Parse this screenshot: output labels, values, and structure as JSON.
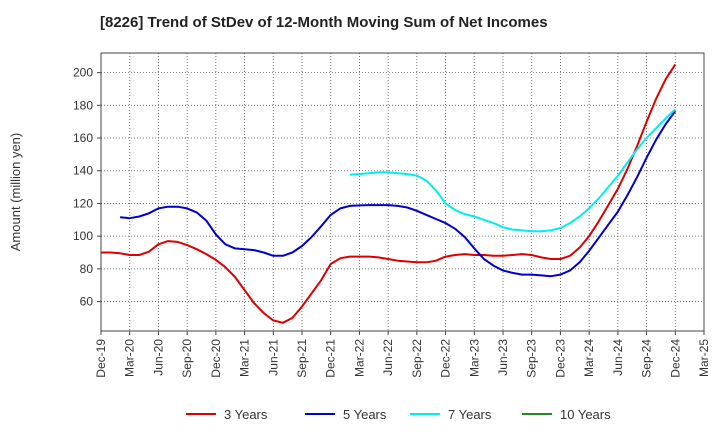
{
  "chart_title": "[8226]  Trend of StDev of 12-Month Moving Sum of Net Incomes",
  "colors": {
    "grid": "#555555",
    "frame": "#444444"
  },
  "chart_data": {
    "type": "line",
    "title": "[8226]  Trend of StDev of 12-Month Moving Sum of Net Incomes",
    "ylabel": "Amount (million yen)",
    "xlabel": "",
    "ylim": [
      42,
      212
    ],
    "yticks": [
      60,
      80,
      100,
      120,
      140,
      160,
      180,
      200
    ],
    "ytick_labels": [
      "60",
      "80",
      "100",
      "120",
      "140",
      "160",
      "180",
      "200"
    ],
    "xticks": [
      "Dec-19",
      "Mar-20",
      "Jun-20",
      "Sep-20",
      "Dec-20",
      "Mar-21",
      "Jun-21",
      "Sep-21",
      "Dec-21",
      "Mar-22",
      "Jun-22",
      "Sep-22",
      "Dec-22",
      "Mar-23",
      "Jun-23",
      "Sep-23",
      "Dec-23",
      "Mar-24",
      "Jun-24",
      "Sep-24",
      "Dec-24",
      "Mar-25"
    ],
    "grid": true,
    "legend_position": "bottom",
    "series": [
      {
        "name": "3 Years",
        "color": "#dd0000",
        "points": [
          [
            "Dec-19",
            90
          ],
          [
            "Jan-20",
            90
          ],
          [
            "Feb-20",
            89.5
          ],
          [
            "Mar-20",
            88.5
          ],
          [
            "Apr-20",
            88.5
          ],
          [
            "May-20",
            90.5
          ],
          [
            "Jun-20",
            95
          ],
          [
            "Jul-20",
            97
          ],
          [
            "Aug-20",
            96.5
          ],
          [
            "Sep-20",
            94.5
          ],
          [
            "Oct-20",
            92
          ],
          [
            "Nov-20",
            89
          ],
          [
            "Dec-20",
            85.5
          ],
          [
            "Jan-21",
            81
          ],
          [
            "Feb-21",
            75
          ],
          [
            "Mar-21",
            67
          ],
          [
            "Apr-21",
            59
          ],
          [
            "May-21",
            53
          ],
          [
            "Jun-21",
            48.5
          ],
          [
            "Jul-21",
            47
          ],
          [
            "Aug-21",
            50
          ],
          [
            "Sep-21",
            57
          ],
          [
            "Oct-21",
            65
          ],
          [
            "Nov-21",
            73
          ],
          [
            "Dec-21",
            83
          ],
          [
            "Jan-22",
            86.5
          ],
          [
            "Feb-22",
            87.5
          ],
          [
            "Mar-22",
            87.5
          ],
          [
            "Apr-22",
            87.5
          ],
          [
            "May-22",
            87
          ],
          [
            "Jun-22",
            86
          ],
          [
            "Jul-22",
            85
          ],
          [
            "Aug-22",
            84.5
          ],
          [
            "Sep-22",
            84
          ],
          [
            "Oct-22",
            84
          ],
          [
            "Nov-22",
            85
          ],
          [
            "Dec-22",
            87.5
          ],
          [
            "Jan-23",
            88.5
          ],
          [
            "Feb-23",
            89
          ],
          [
            "Mar-23",
            88.5
          ],
          [
            "Apr-23",
            88.5
          ],
          [
            "May-23",
            88
          ],
          [
            "Jun-23",
            88
          ],
          [
            "Jul-23",
            88.5
          ],
          [
            "Aug-23",
            89
          ],
          [
            "Sep-23",
            88.5
          ],
          [
            "Oct-23",
            87
          ],
          [
            "Nov-23",
            86
          ],
          [
            "Dec-23",
            86
          ],
          [
            "Jan-24",
            88
          ],
          [
            "Feb-24",
            93
          ],
          [
            "Mar-24",
            100
          ],
          [
            "Apr-24",
            109
          ],
          [
            "May-24",
            119
          ],
          [
            "Jun-24",
            129
          ],
          [
            "Jul-24",
            141
          ],
          [
            "Aug-24",
            155
          ],
          [
            "Sep-24",
            170
          ],
          [
            "Oct-24",
            184
          ],
          [
            "Nov-24",
            196
          ],
          [
            "Dec-24",
            205
          ]
        ]
      },
      {
        "name": "5 Years",
        "color": "#0000cc",
        "points": [
          [
            "Feb-20",
            111.5
          ],
          [
            "Mar-20",
            111
          ],
          [
            "Apr-20",
            112
          ],
          [
            "May-20",
            114
          ],
          [
            "Jun-20",
            117
          ],
          [
            "Jul-20",
            118
          ],
          [
            "Aug-20",
            118
          ],
          [
            "Sep-20",
            117
          ],
          [
            "Oct-20",
            114.5
          ],
          [
            "Nov-20",
            109.5
          ],
          [
            "Dec-20",
            101
          ],
          [
            "Jan-21",
            95
          ],
          [
            "Feb-21",
            92.5
          ],
          [
            "Mar-21",
            92
          ],
          [
            "Apr-21",
            91.5
          ],
          [
            "May-21",
            90
          ],
          [
            "Jun-21",
            88
          ],
          [
            "Jul-21",
            88
          ],
          [
            "Aug-21",
            90
          ],
          [
            "Sep-21",
            94
          ],
          [
            "Oct-21",
            99.5
          ],
          [
            "Nov-21",
            106
          ],
          [
            "Dec-21",
            113
          ],
          [
            "Jan-22",
            117
          ],
          [
            "Feb-22",
            118.5
          ],
          [
            "Mar-22",
            118.8
          ],
          [
            "Apr-22",
            119
          ],
          [
            "May-22",
            119
          ],
          [
            "Jun-22",
            119
          ],
          [
            "Jul-22",
            118.5
          ],
          [
            "Aug-22",
            117.5
          ],
          [
            "Sep-22",
            115.5
          ],
          [
            "Oct-22",
            113
          ],
          [
            "Nov-22",
            110.5
          ],
          [
            "Dec-22",
            108
          ],
          [
            "Jan-23",
            104.5
          ],
          [
            "Feb-23",
            99.5
          ],
          [
            "Mar-23",
            92.5
          ],
          [
            "Apr-23",
            86
          ],
          [
            "May-23",
            82
          ],
          [
            "Jun-23",
            79
          ],
          [
            "Jul-23",
            77.5
          ],
          [
            "Aug-23",
            76.5
          ],
          [
            "Sep-23",
            76.5
          ],
          [
            "Oct-23",
            76
          ],
          [
            "Nov-23",
            75.5
          ],
          [
            "Dec-23",
            76.5
          ],
          [
            "Jan-24",
            79
          ],
          [
            "Feb-24",
            84
          ],
          [
            "Mar-24",
            91
          ],
          [
            "Apr-24",
            99
          ],
          [
            "May-24",
            107
          ],
          [
            "Jun-24",
            115
          ],
          [
            "Jul-24",
            125
          ],
          [
            "Aug-24",
            136
          ],
          [
            "Sep-24",
            148
          ],
          [
            "Oct-24",
            159
          ],
          [
            "Nov-24",
            168.5
          ],
          [
            "Dec-24",
            176.5
          ]
        ]
      },
      {
        "name": "7 Years",
        "color": "#00eeee",
        "points": [
          [
            "Feb-22",
            137.5
          ],
          [
            "Mar-22",
            138
          ],
          [
            "Apr-22",
            138.5
          ],
          [
            "May-22",
            139
          ],
          [
            "Jun-22",
            139
          ],
          [
            "Jul-22",
            138.5
          ],
          [
            "Aug-22",
            138
          ],
          [
            "Sep-22",
            137
          ],
          [
            "Oct-22",
            134
          ],
          [
            "Nov-22",
            128
          ],
          [
            "Dec-22",
            120
          ],
          [
            "Jan-23",
            116
          ],
          [
            "Feb-23",
            113.5
          ],
          [
            "Mar-23",
            112
          ],
          [
            "Apr-23",
            110
          ],
          [
            "May-23",
            108
          ],
          [
            "Jun-23",
            105.5
          ],
          [
            "Jul-23",
            104
          ],
          [
            "Aug-23",
            103.5
          ],
          [
            "Sep-23",
            103
          ],
          [
            "Oct-23",
            103
          ],
          [
            "Nov-23",
            103.5
          ],
          [
            "Dec-23",
            105
          ],
          [
            "Jan-24",
            108
          ],
          [
            "Feb-24",
            112
          ],
          [
            "Mar-24",
            117
          ],
          [
            "Apr-24",
            123
          ],
          [
            "May-24",
            130
          ],
          [
            "Jun-24",
            137
          ],
          [
            "Jul-24",
            145
          ],
          [
            "Aug-24",
            153
          ],
          [
            "Sep-24",
            160
          ],
          [
            "Oct-24",
            166
          ],
          [
            "Nov-24",
            172
          ],
          [
            "Dec-24",
            177.5
          ]
        ]
      },
      {
        "name": "10 Years",
        "color": "#228822",
        "points": []
      }
    ]
  }
}
